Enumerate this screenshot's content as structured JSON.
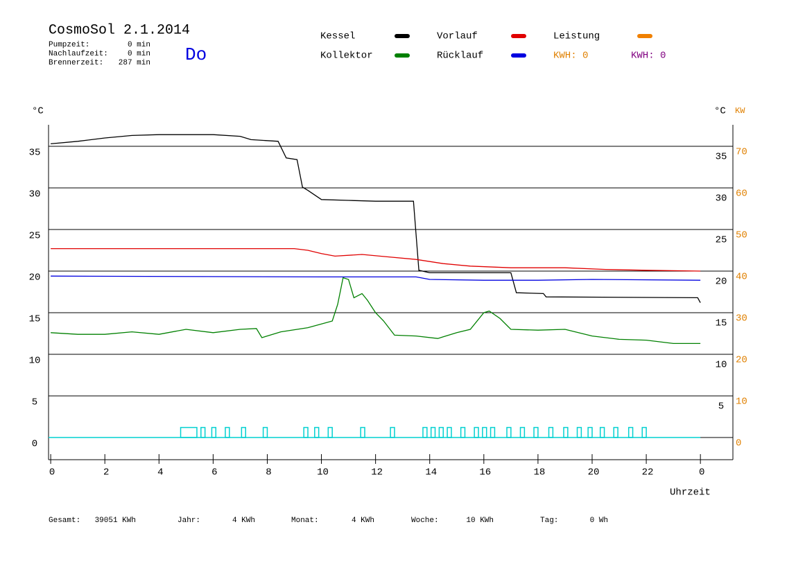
{
  "chart_data": {
    "type": "line",
    "title": "CosmoSol 2.1.2014",
    "day": "Do",
    "info": [
      [
        "Pumpzeit:",
        "0 min"
      ],
      [
        "Nachlaufzeit:",
        "0 min"
      ],
      [
        "Brennerzeit:",
        "287 min"
      ]
    ],
    "ylabel": "°C",
    "y_right_label": "°C",
    "y2label": "KW",
    "xlabel": "Uhrzeit",
    "xlim": [
      -0.08,
      25.2
    ],
    "xticks": [
      0,
      2,
      4,
      6,
      8,
      10,
      12,
      14,
      16,
      18,
      20,
      22,
      {
        "value": 24,
        "label": "0"
      }
    ],
    "ylim": [
      -2.67,
      37.58
    ],
    "yticks": [
      0,
      5,
      10,
      15,
      20,
      25,
      30,
      35
    ],
    "y_right_ticks": [
      5,
      10,
      15,
      20,
      25,
      30,
      35
    ],
    "y2lim": [
      -5.34,
      75.16
    ],
    "y2ticks": [
      0,
      10,
      20,
      30,
      40,
      50,
      60,
      70
    ],
    "grid": true,
    "series": [
      {
        "name": "Kessel",
        "color": "#000000",
        "x": [
          0,
          1,
          2,
          3,
          4,
          5,
          6,
          7,
          7.4,
          8.4,
          8.7,
          9.1,
          9.3,
          9.5,
          10,
          11,
          12,
          13.4,
          13.6,
          14,
          17.0,
          17.2,
          18.2,
          18.3,
          23.9,
          24
        ],
        "values": [
          35.3,
          35.6,
          36.0,
          36.3,
          36.4,
          36.4,
          36.4,
          36.2,
          35.8,
          35.6,
          33.6,
          33.4,
          30.1,
          29.7,
          28.6,
          28.5,
          28.4,
          28.4,
          20.1,
          19.8,
          19.8,
          17.4,
          17.3,
          16.9,
          16.8,
          16.2
        ]
      },
      {
        "name": "Kollektor",
        "color": "#008000",
        "x": [
          0,
          1,
          2,
          3,
          4,
          5,
          6,
          7,
          7.6,
          7.8,
          8.5,
          9.5,
          10.4,
          10.6,
          10.8,
          11.0,
          11.2,
          11.5,
          11.7,
          12,
          12.3,
          12.7,
          13.5,
          14.3,
          15,
          15.5,
          16,
          16.2,
          16.6,
          17,
          18,
          19,
          20,
          21,
          22,
          23,
          24
        ],
        "values": [
          12.6,
          12.4,
          12.4,
          12.7,
          12.4,
          13.0,
          12.6,
          13.0,
          13.1,
          12.0,
          12.7,
          13.2,
          14.0,
          16.0,
          19.2,
          19.0,
          16.8,
          17.3,
          16.5,
          15.0,
          14.0,
          12.3,
          12.2,
          11.9,
          12.6,
          13.0,
          15.0,
          15.2,
          14.3,
          13.0,
          12.9,
          13.0,
          12.2,
          11.8,
          11.7,
          11.3,
          11.3
        ]
      },
      {
        "name": "Vorlauf",
        "color": "#e00000",
        "x": [
          0,
          5,
          9,
          9.5,
          10,
          10.5,
          11.5,
          12.5,
          13.5,
          14.5,
          15.5,
          17,
          19,
          20.5,
          22,
          24
        ],
        "values": [
          22.7,
          22.7,
          22.7,
          22.5,
          22.1,
          21.8,
          22.0,
          21.7,
          21.4,
          20.9,
          20.6,
          20.4,
          20.4,
          20.2,
          20.1,
          20.0
        ]
      },
      {
        "name": "Rücklauf",
        "color": "#0000e0",
        "x": [
          0,
          10,
          13.5,
          14,
          16,
          18,
          20,
          24
        ],
        "values": [
          19.4,
          19.3,
          19.3,
          19.0,
          18.9,
          18.9,
          19.0,
          18.9
        ]
      },
      {
        "name": "Leistung",
        "color": "#f08000",
        "axis": "y2",
        "x": [],
        "values": []
      }
    ],
    "kwh_labels": [
      {
        "text": "KWH: 0",
        "color": "#e08000"
      },
      {
        "text": "KWH: 0",
        "color": "#800080"
      }
    ],
    "pump": {
      "color": "#00d0d0",
      "height": 1.2,
      "intervals": [
        [
          4.8,
          5.4
        ],
        [
          5.55,
          5.7
        ],
        [
          5.95,
          6.1
        ],
        [
          6.45,
          6.6
        ],
        [
          7.05,
          7.2
        ],
        [
          7.85,
          8.0
        ],
        [
          9.35,
          9.5
        ],
        [
          9.75,
          9.9
        ],
        [
          10.25,
          10.4
        ],
        [
          11.45,
          11.6
        ],
        [
          12.55,
          12.7
        ],
        [
          13.75,
          13.9
        ],
        [
          14.05,
          14.2
        ],
        [
          14.35,
          14.5
        ],
        [
          14.65,
          14.8
        ],
        [
          15.15,
          15.3
        ],
        [
          15.65,
          15.8
        ],
        [
          15.95,
          16.1
        ],
        [
          16.25,
          16.4
        ],
        [
          16.85,
          17.0
        ],
        [
          17.35,
          17.5
        ],
        [
          17.85,
          18.0
        ],
        [
          18.4,
          18.55
        ],
        [
          18.95,
          19.1
        ],
        [
          19.45,
          19.6
        ],
        [
          19.85,
          20.0
        ],
        [
          20.3,
          20.45
        ],
        [
          20.8,
          20.95
        ],
        [
          21.35,
          21.5
        ],
        [
          21.85,
          22.0
        ]
      ]
    },
    "footer": [
      [
        "Gesamt:",
        "39051 KWh"
      ],
      [
        "Jahr:",
        "4 KWh"
      ],
      [
        "Monat:",
        "4 KWh"
      ],
      [
        "Woche:",
        "10 KWh"
      ],
      [
        "Tag:",
        "0 Wh"
      ]
    ]
  }
}
